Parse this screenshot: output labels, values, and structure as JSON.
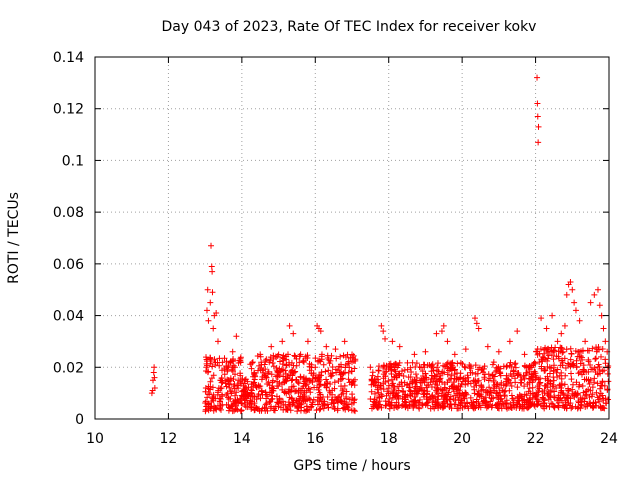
{
  "chart_data": {
    "type": "scatter",
    "title": "Day 043 of 2023, Rate Of TEC Index for receiver kokv",
    "xlabel": "GPS time / hours",
    "ylabel": "ROTI / TECUs",
    "xlim": [
      10,
      24
    ],
    "ylim": [
      0,
      0.14
    ],
    "x_ticks": [
      10,
      12,
      14,
      16,
      18,
      20,
      22,
      24
    ],
    "x_tick_labels": [
      "10",
      "12",
      "14",
      "16",
      "18",
      "20",
      "22",
      "24"
    ],
    "y_ticks": [
      0,
      0.02,
      0.04,
      0.06,
      0.08,
      0.1,
      0.12,
      0.14
    ],
    "y_tick_labels": [
      "0",
      "0.02",
      "0.04",
      "0.06",
      "0.08",
      "0.1",
      "0.12",
      "0.14"
    ],
    "grid": true,
    "marker": "+",
    "color": "#ff0000",
    "series": [
      {
        "name": "ROTI",
        "points": [
          [
            11.55,
            0.01
          ],
          [
            11.57,
            0.011
          ],
          [
            11.58,
            0.015
          ],
          [
            11.6,
            0.018
          ],
          [
            11.61,
            0.02
          ],
          [
            11.62,
            0.016
          ],
          [
            11.63,
            0.012
          ],
          [
            13.02,
            0.012
          ],
          [
            13.04,
            0.02
          ],
          [
            13.05,
            0.042
          ],
          [
            13.07,
            0.05
          ],
          [
            13.09,
            0.038
          ],
          [
            13.11,
            0.01
          ],
          [
            13.14,
            0.045
          ],
          [
            13.16,
            0.067
          ],
          [
            13.18,
            0.059
          ],
          [
            13.19,
            0.057
          ],
          [
            13.2,
            0.049
          ],
          [
            13.22,
            0.035
          ],
          [
            13.25,
            0.04
          ],
          [
            13.3,
            0.041
          ],
          [
            13.35,
            0.03
          ],
          [
            13.1,
            0.006
          ],
          [
            13.2,
            0.008
          ],
          [
            13.3,
            0.004
          ],
          [
            13.45,
            0.012
          ],
          [
            13.6,
            0.02
          ],
          [
            13.75,
            0.026
          ],
          [
            13.85,
            0.032
          ],
          [
            13.9,
            0.015
          ],
          [
            14.1,
            0.009
          ],
          [
            14.3,
            0.022
          ],
          [
            14.5,
            0.025
          ],
          [
            14.8,
            0.028
          ],
          [
            15.1,
            0.03
          ],
          [
            15.3,
            0.036
          ],
          [
            15.4,
            0.033
          ],
          [
            15.6,
            0.025
          ],
          [
            15.8,
            0.03
          ],
          [
            16.05,
            0.036
          ],
          [
            16.1,
            0.035
          ],
          [
            16.15,
            0.034
          ],
          [
            16.3,
            0.028
          ],
          [
            16.55,
            0.027
          ],
          [
            16.8,
            0.03
          ],
          [
            17.0,
            0.022
          ],
          [
            17.5,
            0.02
          ],
          [
            17.8,
            0.036
          ],
          [
            17.85,
            0.034
          ],
          [
            17.9,
            0.031
          ],
          [
            18.1,
            0.03
          ],
          [
            18.3,
            0.028
          ],
          [
            18.7,
            0.025
          ],
          [
            19.0,
            0.026
          ],
          [
            19.3,
            0.033
          ],
          [
            19.45,
            0.034
          ],
          [
            19.5,
            0.036
          ],
          [
            19.6,
            0.03
          ],
          [
            19.8,
            0.025
          ],
          [
            20.1,
            0.027
          ],
          [
            20.35,
            0.039
          ],
          [
            20.4,
            0.037
          ],
          [
            20.45,
            0.035
          ],
          [
            20.7,
            0.028
          ],
          [
            21.0,
            0.026
          ],
          [
            21.3,
            0.03
          ],
          [
            21.5,
            0.034
          ],
          [
            21.7,
            0.025
          ],
          [
            21.9,
            0.02
          ],
          [
            22.04,
            0.132
          ],
          [
            22.05,
            0.122
          ],
          [
            22.06,
            0.117
          ],
          [
            22.08,
            0.113
          ],
          [
            22.07,
            0.107
          ],
          [
            22.1,
            0.022
          ],
          [
            22.15,
            0.039
          ],
          [
            22.3,
            0.035
          ],
          [
            22.45,
            0.04
          ],
          [
            22.6,
            0.03
          ],
          [
            22.7,
            0.033
          ],
          [
            22.8,
            0.036
          ],
          [
            22.85,
            0.048
          ],
          [
            22.9,
            0.052
          ],
          [
            22.95,
            0.053
          ],
          [
            23.0,
            0.05
          ],
          [
            23.05,
            0.045
          ],
          [
            23.1,
            0.042
          ],
          [
            23.2,
            0.038
          ],
          [
            23.35,
            0.03
          ],
          [
            23.5,
            0.045
          ],
          [
            23.6,
            0.048
          ],
          [
            23.7,
            0.05
          ],
          [
            23.75,
            0.044
          ],
          [
            23.8,
            0.04
          ],
          [
            23.85,
            0.035
          ],
          [
            23.9,
            0.03
          ],
          [
            23.95,
            0.026
          ]
        ],
        "dense_band": [
          {
            "x_start": 13.0,
            "x_end": 14.0,
            "y_min": 0.003,
            "y_max": 0.024
          },
          {
            "x_start": 14.0,
            "x_end": 14.2,
            "y_min": 0.004,
            "y_max": 0.016
          },
          {
            "x_start": 14.2,
            "x_end": 17.1,
            "y_min": 0.003,
            "y_max": 0.025
          },
          {
            "x_start": 17.5,
            "x_end": 22.0,
            "y_min": 0.004,
            "y_max": 0.022
          },
          {
            "x_start": 22.0,
            "x_end": 24.0,
            "y_min": 0.004,
            "y_max": 0.028
          }
        ]
      }
    ]
  }
}
